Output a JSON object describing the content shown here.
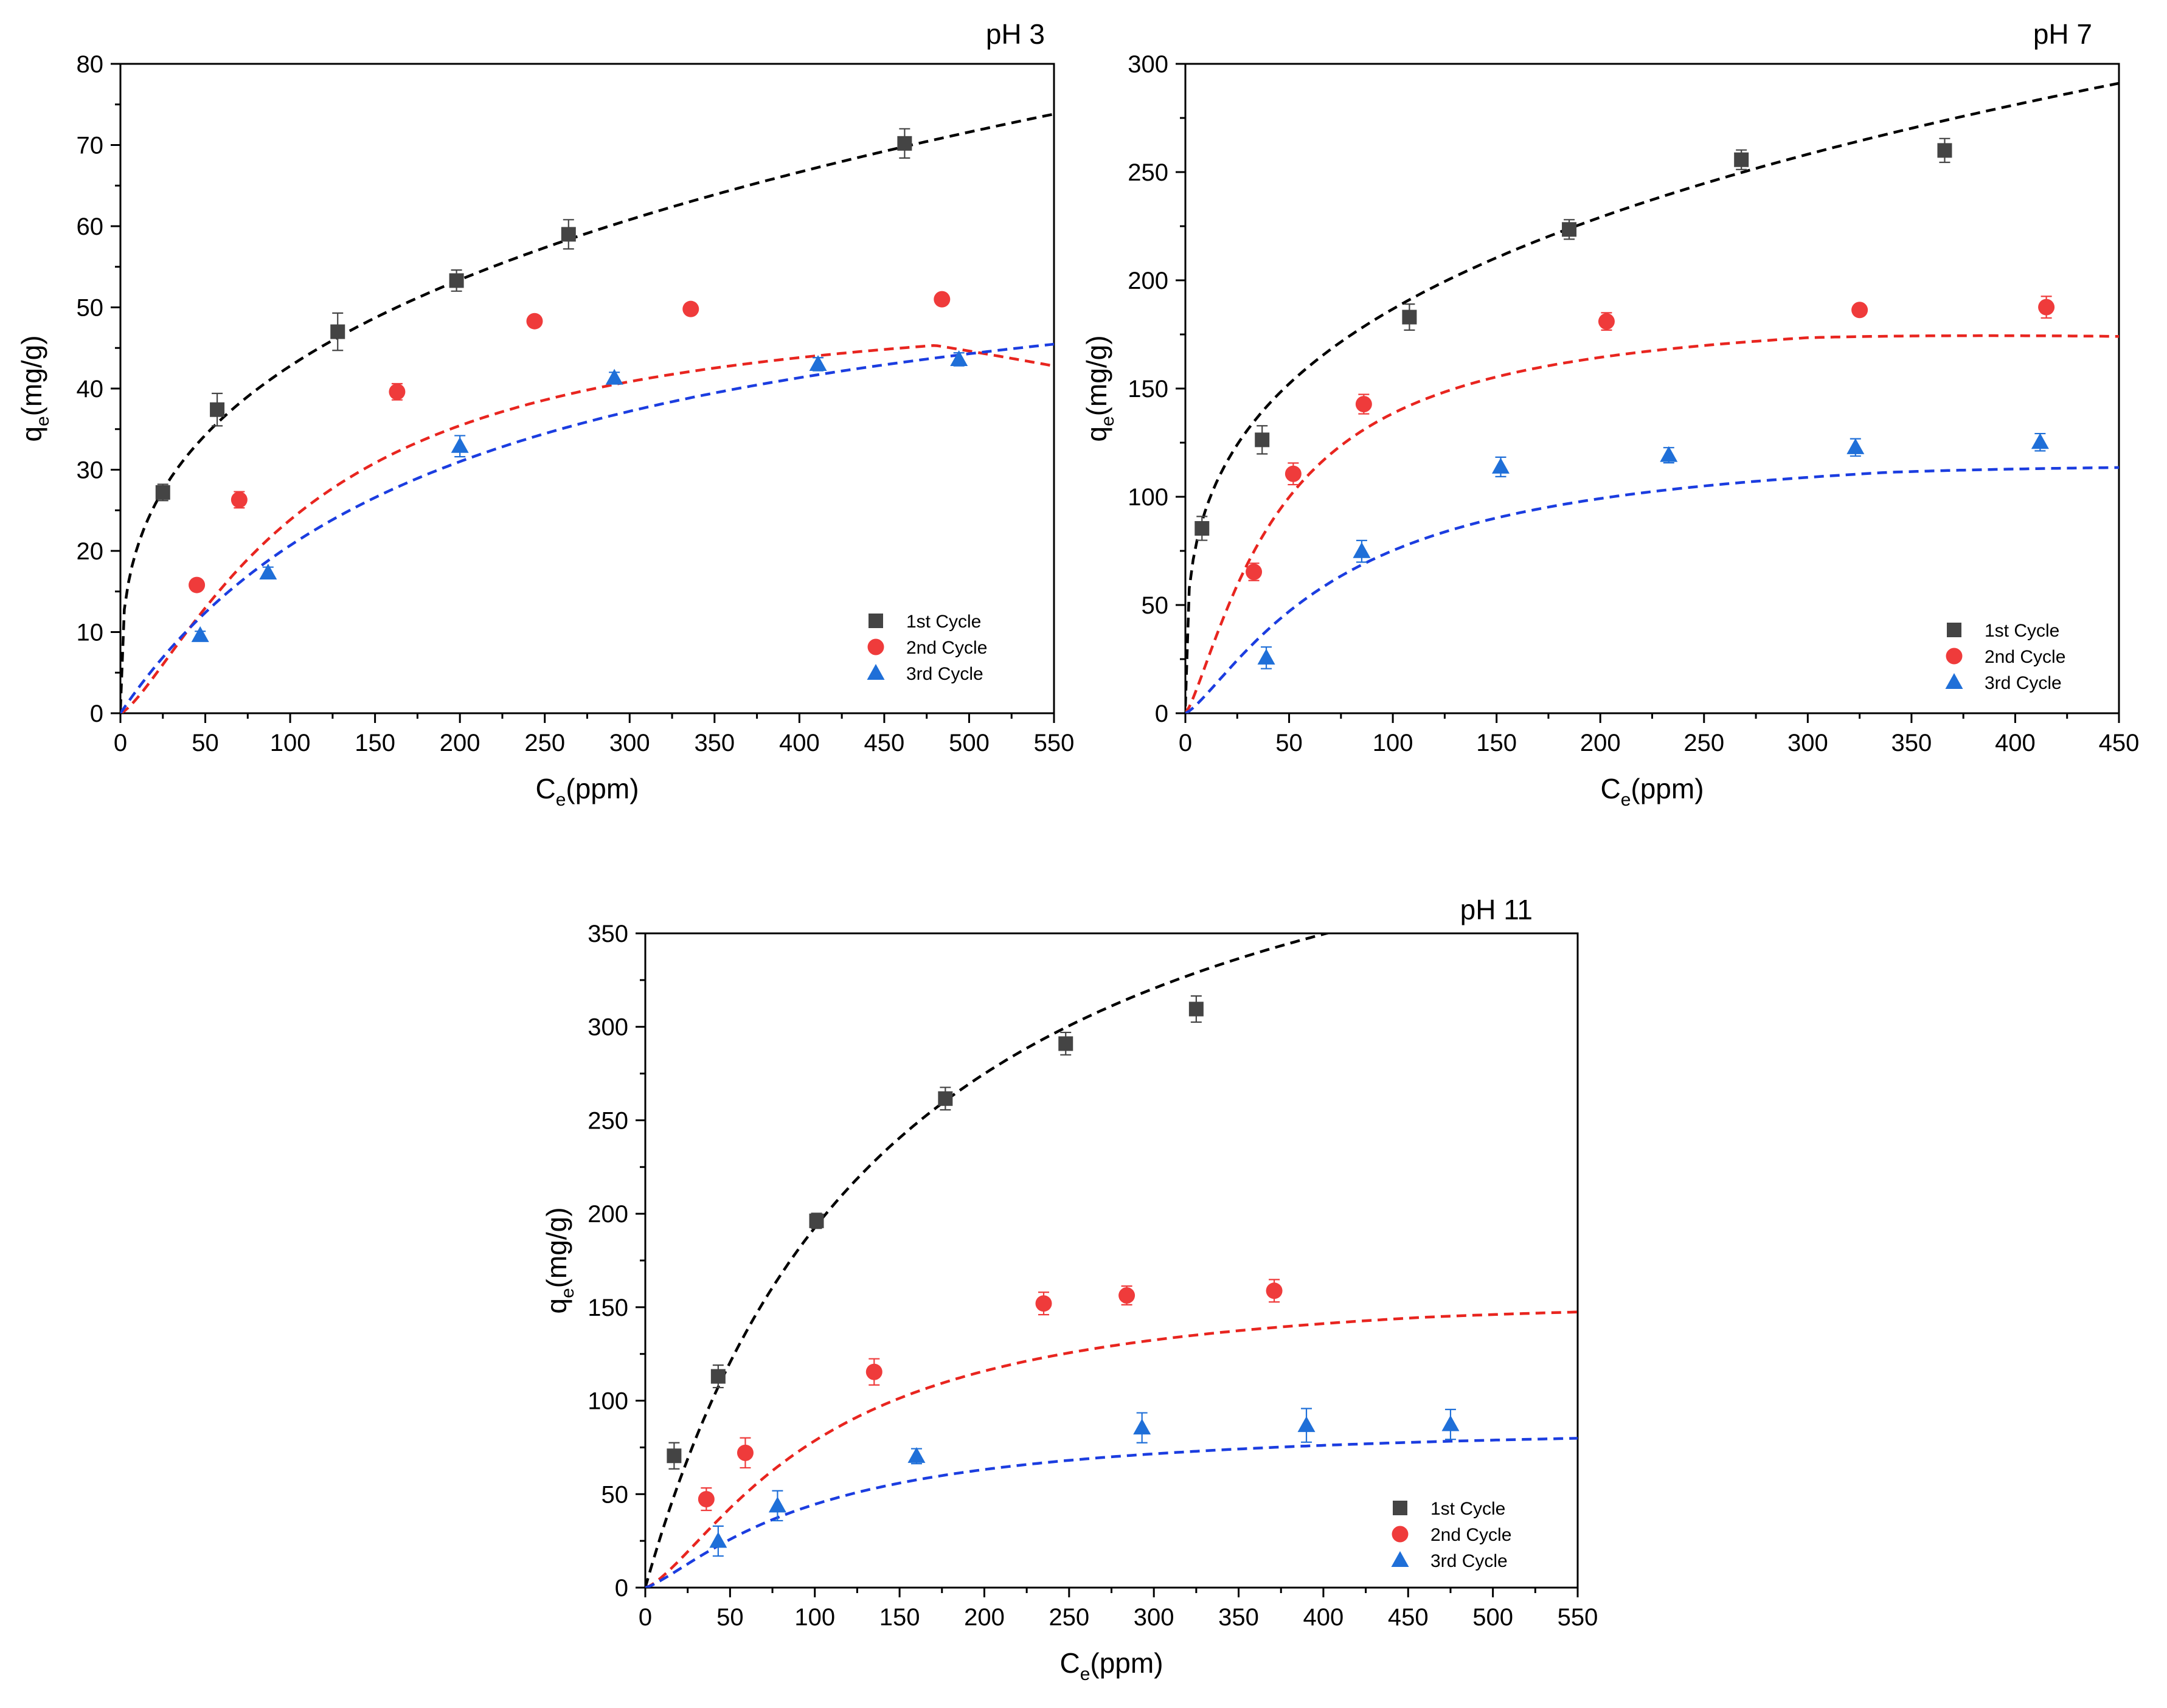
{
  "colors": {
    "cycle1": "#444444",
    "cycle2": "#ef3b3b",
    "cycle3": "#1f6fd8",
    "fit1": "#000000",
    "fit2": "#e8251f",
    "fit3": "#1b3de0"
  },
  "chart_data": [
    {
      "type": "scatter",
      "title": "pH 3",
      "xlabel_main": "C",
      "xlabel_sub": "e",
      "xlabel_rest": "(ppm)",
      "ylabel_main": "q",
      "ylabel_sub": "e",
      "ylabel_rest": "(mg/g)",
      "xlim": [
        0,
        550
      ],
      "ylim": [
        0,
        80
      ],
      "xticks": [
        0,
        50,
        100,
        150,
        200,
        250,
        300,
        350,
        400,
        450,
        500,
        550
      ],
      "yticks": [
        0,
        10,
        20,
        30,
        40,
        50,
        60,
        70,
        80
      ],
      "legend_position": "bottom-right",
      "series": [
        {
          "name": "1st Cycle",
          "marker": "square",
          "color_key": "cycle1",
          "fit_color_key": "fit1",
          "x": [
            25,
            57,
            128,
            198,
            264,
            462
          ],
          "y": [
            27.2,
            37.4,
            47.0,
            53.3,
            59.0,
            70.2
          ],
          "err": [
            1.0,
            2.0,
            2.3,
            1.3,
            1.8,
            1.8
          ],
          "fit": {
            "model": "freundlich",
            "k": 9.8,
            "n": 0.32
          }
        },
        {
          "name": "2nd Cycle",
          "marker": "circle",
          "color_key": "cycle2",
          "fit_color_key": "fit2",
          "x": [
            45,
            70,
            163,
            244,
            336,
            484
          ],
          "y": [
            15.8,
            26.3,
            39.6,
            48.3,
            49.8,
            51.0
          ],
          "err": [
            0.5,
            1.0,
            1.0,
            0.5,
            0.6,
            0.6
          ],
          "fit": {
            "model": "sips_peak",
            "qmax": 51.7,
            "k": 0.0089,
            "n": 1.35,
            "peak": 480,
            "droop": 0.05
          }
        },
        {
          "name": "3rd Cycle",
          "marker": "triangle",
          "color_key": "cycle3",
          "fit_color_key": "fit3",
          "x": [
            47,
            87,
            200,
            291,
            411,
            494
          ],
          "y": [
            9.6,
            17.3,
            32.9,
            41.3,
            43.0,
            43.6
          ],
          "err": [
            0.5,
            0.7,
            1.3,
            0.7,
            0.8,
            0.8
          ],
          "fit": {
            "model": "langmuir",
            "qmax": 62.0,
            "kl": 0.005
          }
        }
      ]
    },
    {
      "type": "scatter",
      "title": "pH 7",
      "xlabel_main": "C",
      "xlabel_sub": "e",
      "xlabel_rest": "(ppm)",
      "ylabel_main": "q",
      "ylabel_sub": "e",
      "ylabel_rest": "(mg/g)",
      "xlim": [
        0,
        450
      ],
      "ylim": [
        0,
        300
      ],
      "xticks": [
        0,
        50,
        100,
        150,
        200,
        250,
        300,
        350,
        400,
        450
      ],
      "yticks": [
        0,
        50,
        100,
        150,
        200,
        250,
        300
      ],
      "legend_position": "bottom-right",
      "series": [
        {
          "name": "1st Cycle",
          "marker": "square",
          "color_key": "cycle1",
          "fit_color_key": "fit1",
          "x": [
            8,
            37,
            108,
            185,
            268,
            366
          ],
          "y": [
            85.4,
            126.3,
            183.0,
            223.5,
            255.7,
            260.0
          ],
          "err": [
            5.5,
            6.5,
            6.0,
            4.5,
            4.5,
            5.5
          ],
          "fit": {
            "model": "freundlich",
            "k": 48.0,
            "n": 0.295
          }
        },
        {
          "name": "2nd Cycle",
          "marker": "circle",
          "color_key": "cycle2",
          "fit_color_key": "fit2",
          "x": [
            33,
            52,
            86,
            203,
            325,
            415
          ],
          "y": [
            65.3,
            110.6,
            142.8,
            181.0,
            186.3,
            187.6
          ],
          "err": [
            4.0,
            5.0,
            4.5,
            4.0,
            2.0,
            5.0
          ],
          "fit": {
            "model": "sips_peak",
            "qmax": 188.5,
            "k": 0.0219,
            "n": 1.3,
            "peak": 300,
            "droop": 0.035
          }
        },
        {
          "name": "3rd Cycle",
          "marker": "triangle",
          "color_key": "cycle3",
          "fit_color_key": "fit3",
          "x": [
            39,
            85,
            152,
            233,
            323,
            412
          ],
          "y": [
            25.6,
            74.8,
            113.8,
            119.2,
            122.8,
            125.2
          ],
          "err": [
            5.0,
            5.0,
            4.5,
            3.5,
            4.0,
            4.0
          ],
          "fit": {
            "model": "sips_peak",
            "qmax": 127.0,
            "k": 0.0133,
            "n": 1.3,
            "peak": 340,
            "droop": 0.02
          }
        }
      ]
    },
    {
      "type": "scatter",
      "title": "pH 11",
      "xlabel_main": "C",
      "xlabel_sub": "e",
      "xlabel_rest": "(ppm)",
      "ylabel_main": "q",
      "ylabel_sub": "e",
      "ylabel_rest": "(mg/g)",
      "xlim": [
        0,
        550
      ],
      "ylim": [
        0,
        350
      ],
      "xticks": [
        0,
        50,
        100,
        150,
        200,
        250,
        300,
        350,
        400,
        450,
        500,
        550
      ],
      "yticks": [
        0,
        50,
        100,
        150,
        200,
        250,
        300,
        350
      ],
      "legend_position": "bottom-right",
      "series": [
        {
          "name": "1st Cycle",
          "marker": "square",
          "color_key": "cycle1",
          "fit_color_key": "fit1",
          "x": [
            17,
            43,
            101,
            177,
            248,
            325
          ],
          "y": [
            70.5,
            113.0,
            196.2,
            261.6,
            291.0,
            309.5
          ],
          "err": [
            7.0,
            6.0,
            4.0,
            6.0,
            6.0,
            7.0
          ],
          "fit": {
            "model": "langmuir",
            "qmax": 480.0,
            "kl": 0.0067
          }
        },
        {
          "name": "2nd Cycle",
          "marker": "circle",
          "color_key": "cycle2",
          "fit_color_key": "fit2",
          "x": [
            36,
            59,
            135,
            235,
            284,
            371
          ],
          "y": [
            47.3,
            72.1,
            115.4,
            152.0,
            156.3,
            158.8
          ],
          "err": [
            6.0,
            8.0,
            7.0,
            6.0,
            5.0,
            6.0
          ],
          "fit": {
            "model": "sips_peak",
            "qmax": 163.0,
            "k": 0.0095,
            "n": 1.4,
            "peak": 460,
            "droop": 0.01
          }
        },
        {
          "name": "3rd Cycle",
          "marker": "triangle",
          "color_key": "cycle3",
          "fit_color_key": "fit3",
          "x": [
            43,
            78,
            160,
            293,
            390,
            475
          ],
          "y": [
            24.9,
            43.8,
            70.3,
            85.5,
            86.8,
            87.3
          ],
          "err": [
            8.0,
            8.0,
            4.0,
            8.0,
            9.0,
            8.0
          ],
          "fit": {
            "model": "sips_peak",
            "qmax": 88.5,
            "k": 0.0101,
            "n": 1.3,
            "peak": 450,
            "droop": 0.0
          }
        }
      ]
    }
  ]
}
